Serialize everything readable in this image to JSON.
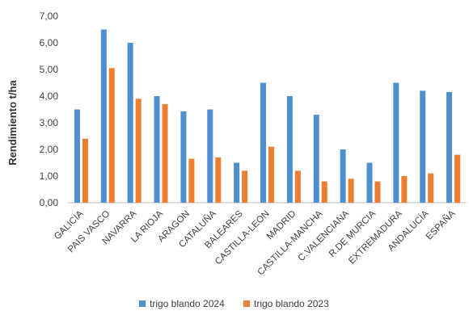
{
  "chart_data": {
    "type": "bar",
    "title": "",
    "xlabel": "",
    "ylabel": "Rendimiento t/ha",
    "ylim": [
      0,
      7
    ],
    "y_ticks": [
      "0,00",
      "1,00",
      "2,00",
      "3,00",
      "4,00",
      "5,00",
      "6,00",
      "7,00"
    ],
    "grid": false,
    "legend_position": "bottom",
    "categories": [
      "GALICIA",
      "PAIS VASCO",
      "NAVARRA",
      "LA RIOJA",
      "ARAGON",
      "CATALUÑA",
      "BALEARES",
      "CASTILLA-LEON",
      "MADRID",
      "CASTILLA-MANCHA",
      "C.VALENCIANA",
      "R.DE MURCIA",
      "EXTREMADURA",
      "ANDALUCÍA",
      "ESPAÑA"
    ],
    "series": [
      {
        "name": "trigo blando 2024",
        "color": "#4f8fcf",
        "values": [
          3.5,
          6.5,
          6.0,
          4.0,
          3.43,
          3.5,
          1.5,
          4.5,
          4.0,
          3.3,
          2.0,
          1.5,
          4.5,
          4.2,
          4.15
        ]
      },
      {
        "name": "trigo blando 2023",
        "color": "#ed7d31",
        "values": [
          2.4,
          5.05,
          3.9,
          3.7,
          1.65,
          1.7,
          1.2,
          2.1,
          1.2,
          0.8,
          0.9,
          0.8,
          1.0,
          1.1,
          1.8
        ]
      }
    ]
  }
}
